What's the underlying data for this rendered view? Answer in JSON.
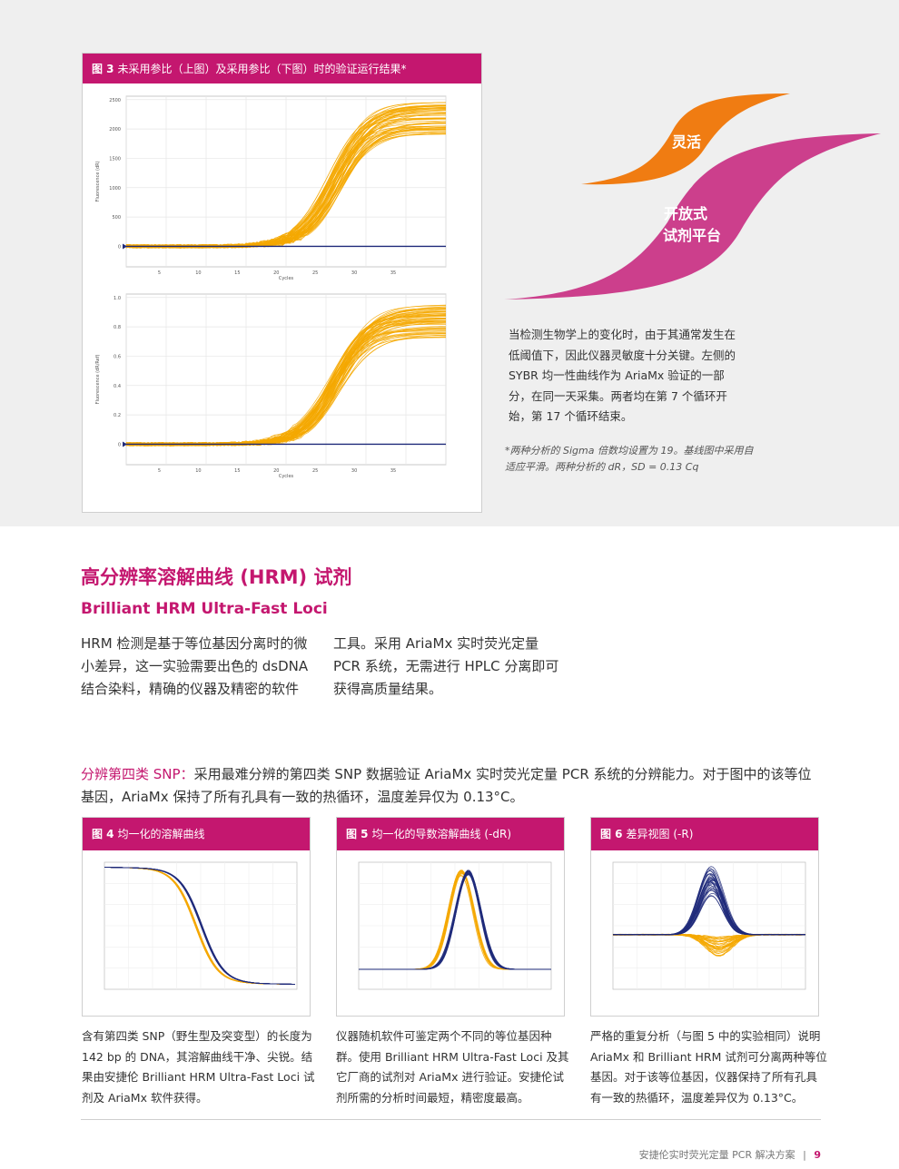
{
  "fig3": {
    "num": "图 3",
    "title": "未采用参比（上图）及采用参比（下图）时的验证运行结果*",
    "top": {
      "ylabel": "Fluorescence (dR)",
      "yticks": [
        "2500",
        "2000",
        "1500",
        "1000",
        "500",
        "0"
      ],
      "xlabel": "Cycles",
      "xticks": [
        "5",
        "10",
        "15",
        "20",
        "25",
        "30",
        "35"
      ]
    },
    "bottom": {
      "ylabel": "Fluorescence (dR/Ref)",
      "yticks": [
        "1.0",
        "0.8",
        "0.6",
        "0.4",
        "0.2",
        "0"
      ],
      "xlabel": "Cycles",
      "xticks": [
        "5",
        "10",
        "15",
        "20",
        "25",
        "30",
        "35"
      ]
    }
  },
  "graphic": {
    "orange_label": "灵活",
    "magenta_label_1": "开放式",
    "magenta_label_2": "试剂平台",
    "orange_color": "#f07c12",
    "magenta_color": "#cc3f8c"
  },
  "side_text": "当检测生物学上的变化时，由于其通常发生在低阈值下，因此仪器灵敏度十分关键。左侧的 SYBR 均一性曲线作为 AriaMx 验证的一部分，在同一天采集。两者均在第 7 个循环开始，第 17 个循环结束。",
  "note": "*两种分析的 Sigma 倍数均设置为 19。基线图中采用自适应平滑。两种分析的 dR，SD = 0.13 Cq",
  "section": {
    "title": "高分辨率溶解曲线 (HRM) 试剂",
    "subtitle": "Brilliant HRM Ultra-Fast Loci",
    "col1": "HRM 检测是基于等位基因分离时的微小差异，这一实验需要出色的 dsDNA 结合染料，精确的仪器及精密的软件",
    "col2": "工具。采用 AriaMx 实时荧光定量 PCR 系统，无需进行 HPLC 分离即可获得高质量结果。"
  },
  "snp": {
    "highlight": "分辨第四类 SNP：",
    "text": "采用最难分辨的第四类 SNP 数据验证 AriaMx 实时荧光定量 PCR 系统的分辨能力。对于图中的该等位基因，AriaMx 保持了所有孔具有一致的热循环，温度差异仅为 0.13°C。"
  },
  "fig4": {
    "num": "图 4",
    "title": "均一化的溶解曲线",
    "caption": "含有第四类 SNP（野生型及突变型）的长度为 142 bp 的 DNA，其溶解曲线干净、尖锐。结果由安捷伦 Brilliant HRM Ultra-Fast Loci 试剂及 AriaMx 软件获得。"
  },
  "fig5": {
    "num": "图 5",
    "title": "均一化的导数溶解曲线 (-dR)",
    "caption": "仪器随机软件可鉴定两个不同的等位基因种群。使用 Brilliant HRM Ultra-Fast Loci 及其它厂商的试剂对 AriaMx 进行验证。安捷伦试剂所需的分析时间最短，精密度最高。"
  },
  "fig6": {
    "num": "图 6",
    "title": "差异视图 (-R)",
    "caption": "严格的重复分析（与图 5 中的实验相同）说明 AriaMx 和 Brilliant HRM 试剂可分离两种等位基因。对于该等位基因，仪器保持了所有孔具有一致的热循环，温度差异仅为 0.13°C。"
  },
  "footer": {
    "text": "安捷伦实时荧光定量 PCR 解决方案",
    "sep": "|",
    "page": "9"
  },
  "colors": {
    "magenta": "#c4176f",
    "orange": "#f5a800",
    "navy": "#1f2a7a"
  }
}
